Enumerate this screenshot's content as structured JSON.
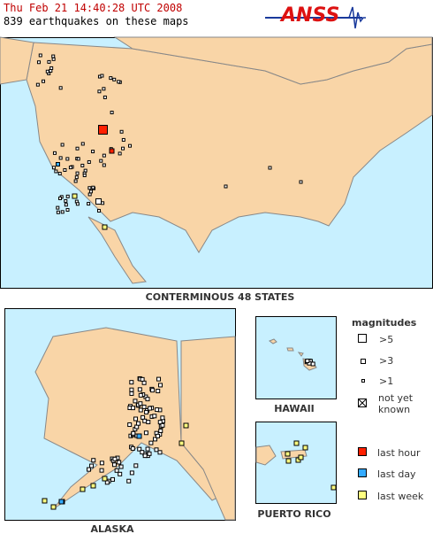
{
  "header": {
    "timestamp": "Thu Feb 21 14:40:28 UTC 2008",
    "count_line": "839 earthquakes on these maps",
    "logo": "ANSS"
  },
  "maps": {
    "conterminous": "CONTERMINOUS 48 STATES",
    "alaska": "ALASKA",
    "hawaii": "HAWAII",
    "puerto_rico": "PUERTO RICO"
  },
  "legend": {
    "title": "magnitudes",
    "sizes": [
      ">5",
      ">3",
      ">1",
      "not yet known"
    ],
    "ages": [
      "last hour",
      "last day",
      "last week"
    ]
  }
}
